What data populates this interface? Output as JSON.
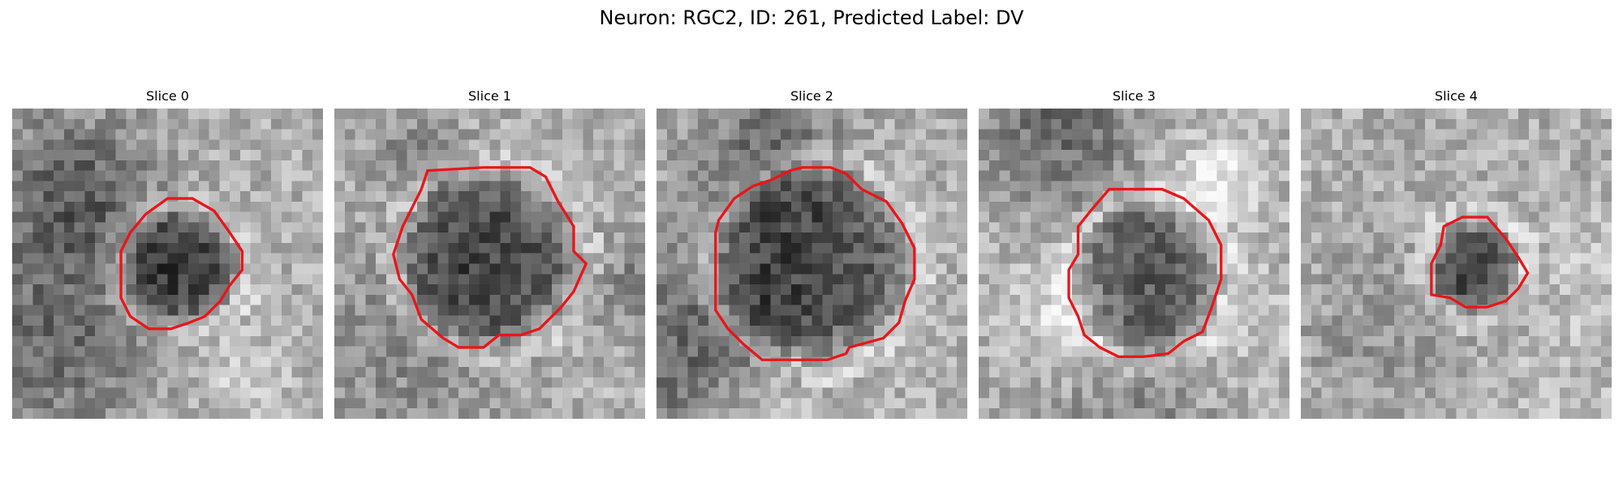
{
  "figure": {
    "title": "Neuron: RGC2, ID: 261, Predicted Label: DV"
  },
  "panels": [
    {
      "title": "Slice 0",
      "seed": 11,
      "contour": [
        [
          0.5,
          0.29
        ],
        [
          0.58,
          0.29
        ],
        [
          0.65,
          0.33
        ],
        [
          0.7,
          0.4
        ],
        [
          0.74,
          0.46
        ],
        [
          0.74,
          0.52
        ],
        [
          0.7,
          0.57
        ],
        [
          0.67,
          0.62
        ],
        [
          0.62,
          0.67
        ],
        [
          0.57,
          0.69
        ],
        [
          0.51,
          0.71
        ],
        [
          0.44,
          0.71
        ],
        [
          0.38,
          0.67
        ],
        [
          0.35,
          0.61
        ],
        [
          0.35,
          0.53
        ],
        [
          0.35,
          0.46
        ],
        [
          0.38,
          0.4
        ],
        [
          0.43,
          0.34
        ]
      ],
      "cell_center": [
        0.55,
        0.51
      ],
      "cell_radius": 0.19
    },
    {
      "title": "Slice 1",
      "seed": 27,
      "contour": [
        [
          0.3,
          0.2
        ],
        [
          0.48,
          0.19
        ],
        [
          0.63,
          0.19
        ],
        [
          0.68,
          0.22
        ],
        [
          0.72,
          0.3
        ],
        [
          0.77,
          0.38
        ],
        [
          0.77,
          0.46
        ],
        [
          0.81,
          0.5
        ],
        [
          0.77,
          0.59
        ],
        [
          0.73,
          0.64
        ],
        [
          0.66,
          0.71
        ],
        [
          0.6,
          0.73
        ],
        [
          0.53,
          0.73
        ],
        [
          0.48,
          0.77
        ],
        [
          0.4,
          0.77
        ],
        [
          0.35,
          0.74
        ],
        [
          0.28,
          0.68
        ],
        [
          0.25,
          0.6
        ],
        [
          0.21,
          0.55
        ],
        [
          0.19,
          0.47
        ],
        [
          0.22,
          0.38
        ],
        [
          0.25,
          0.32
        ],
        [
          0.28,
          0.26
        ]
      ],
      "cell_center": [
        0.5,
        0.48
      ],
      "cell_radius": 0.29
    },
    {
      "title": "Slice 2",
      "seed": 43,
      "contour": [
        [
          0.2,
          0.36
        ],
        [
          0.25,
          0.29
        ],
        [
          0.31,
          0.25
        ],
        [
          0.37,
          0.23
        ],
        [
          0.43,
          0.2
        ],
        [
          0.47,
          0.19
        ],
        [
          0.56,
          0.19
        ],
        [
          0.61,
          0.21
        ],
        [
          0.66,
          0.26
        ],
        [
          0.74,
          0.3
        ],
        [
          0.79,
          0.37
        ],
        [
          0.83,
          0.45
        ],
        [
          0.83,
          0.55
        ],
        [
          0.8,
          0.62
        ],
        [
          0.78,
          0.69
        ],
        [
          0.73,
          0.74
        ],
        [
          0.62,
          0.77
        ],
        [
          0.61,
          0.79
        ],
        [
          0.55,
          0.81
        ],
        [
          0.34,
          0.81
        ],
        [
          0.28,
          0.76
        ],
        [
          0.23,
          0.71
        ],
        [
          0.19,
          0.65
        ],
        [
          0.19,
          0.5
        ],
        [
          0.19,
          0.4
        ]
      ],
      "cell_center": [
        0.51,
        0.5
      ],
      "cell_radius": 0.32
    },
    {
      "title": "Slice 3",
      "seed": 59,
      "contour": [
        [
          0.42,
          0.26
        ],
        [
          0.59,
          0.26
        ],
        [
          0.66,
          0.29
        ],
        [
          0.74,
          0.36
        ],
        [
          0.78,
          0.44
        ],
        [
          0.78,
          0.55
        ],
        [
          0.75,
          0.64
        ],
        [
          0.72,
          0.72
        ],
        [
          0.66,
          0.75
        ],
        [
          0.61,
          0.79
        ],
        [
          0.53,
          0.8
        ],
        [
          0.45,
          0.8
        ],
        [
          0.39,
          0.77
        ],
        [
          0.34,
          0.73
        ],
        [
          0.32,
          0.67
        ],
        [
          0.29,
          0.61
        ],
        [
          0.29,
          0.52
        ],
        [
          0.32,
          0.47
        ],
        [
          0.32,
          0.38
        ],
        [
          0.36,
          0.33
        ]
      ],
      "cell_center": [
        0.54,
        0.55
      ],
      "cell_radius": 0.25
    },
    {
      "title": "Slice 4",
      "seed": 71,
      "contour": [
        [
          0.46,
          0.38
        ],
        [
          0.52,
          0.35
        ],
        [
          0.6,
          0.35
        ],
        [
          0.66,
          0.42
        ],
        [
          0.7,
          0.48
        ],
        [
          0.73,
          0.53
        ],
        [
          0.7,
          0.58
        ],
        [
          0.66,
          0.62
        ],
        [
          0.6,
          0.64
        ],
        [
          0.53,
          0.64
        ],
        [
          0.48,
          0.61
        ],
        [
          0.42,
          0.6
        ],
        [
          0.42,
          0.5
        ],
        [
          0.45,
          0.44
        ]
      ],
      "cell_center": [
        0.56,
        0.51
      ],
      "cell_radius": 0.15
    }
  ]
}
